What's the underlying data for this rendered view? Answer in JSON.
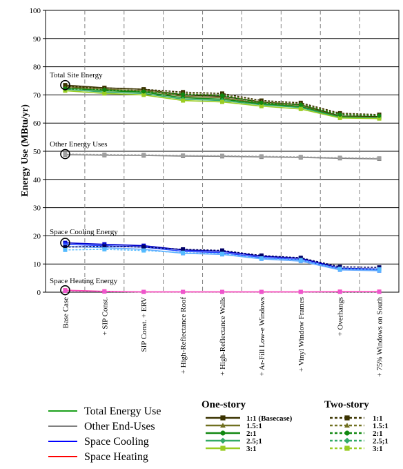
{
  "chart_data": {
    "type": "line",
    "ylabel": "Energy Use (MBtu/yr)",
    "ylim": [
      0,
      100
    ],
    "yticks": [
      "0",
      "10",
      "20",
      "30",
      "40",
      "50",
      "60",
      "70",
      "80",
      "90",
      "100"
    ],
    "grid": "horizontal",
    "categories": [
      "Base Case",
      "+ SIP Const.",
      "SIP Const. + ERV",
      "+ High-Reflectance Roof",
      "+ High-Reflectance Walls",
      "+ Ar-Fill Low-e Windows",
      "+ Vinyl Window Frames",
      "+ Overhangs",
      "+ 75% Windows on South"
    ],
    "annotations": [
      "Total Site Energy",
      "Other Energy Uses",
      "Space Cooling Energy",
      "Space Heating Energy"
    ],
    "circled_points": [
      {
        "category": "Base Case",
        "value": 73.5
      },
      {
        "category": "Base Case",
        "value": 49
      },
      {
        "category": "Base Case",
        "value": 17.5
      },
      {
        "category": "Base Case",
        "value": 0.7
      }
    ],
    "end_uses": [
      {
        "name": "Total Energy Use",
        "color": "#1aa01a"
      },
      {
        "name": "Other End-Uses",
        "color": "#808080"
      },
      {
        "name": "Space Cooling",
        "color": "#0000ff"
      },
      {
        "name": "Space Heating",
        "color": "#ff0000"
      }
    ],
    "aspect_ratios": {
      "one_story_label": "One-story",
      "two_story_label": "Two-story",
      "one_story": [
        {
          "name": "1:1 (Basecase)",
          "color": "#3a3300",
          "marker": "square"
        },
        {
          "name": "1.5:1",
          "color": "#707020",
          "marker": "triangle"
        },
        {
          "name": "2:1",
          "color": "#118811",
          "marker": "circle"
        },
        {
          "name": "2.5;1",
          "color": "#33aa66",
          "marker": "diamond"
        },
        {
          "name": "3:1",
          "color": "#99cc22",
          "marker": "square"
        }
      ],
      "two_story": [
        {
          "name": "1:1",
          "color": "#3a3300",
          "marker": "square"
        },
        {
          "name": "1.5:1",
          "color": "#707020",
          "marker": "triangle"
        },
        {
          "name": "2:1",
          "color": "#118811",
          "marker": "circle"
        },
        {
          "name": "2.5;1",
          "color": "#33aa66",
          "marker": "diamond"
        },
        {
          "name": "3:1",
          "color": "#99cc22",
          "marker": "square"
        }
      ]
    },
    "series": [
      {
        "group": "Total Energy Use",
        "story": "One-story",
        "name": "1:1 (Basecase)",
        "values": [
          73.5,
          72.5,
          72,
          70,
          69.5,
          67.5,
          66.5,
          62.5,
          62.3
        ],
        "color": "#3a3300",
        "marker": "square",
        "dashed": false
      },
      {
        "group": "Total Energy Use",
        "story": "One-story",
        "name": "1.5:1",
        "values": [
          73,
          72,
          71.5,
          69.5,
          69,
          67,
          66,
          62.3,
          62
        ],
        "color": "#707020",
        "marker": "triangle",
        "dashed": false
      },
      {
        "group": "Total Energy Use",
        "story": "One-story",
        "name": "2:1",
        "values": [
          72.5,
          71.5,
          71,
          69,
          68.5,
          66.8,
          65.8,
          62.2,
          61.9
        ],
        "color": "#118811",
        "marker": "circle",
        "dashed": false
      },
      {
        "group": "Total Energy Use",
        "story": "One-story",
        "name": "2.5;1",
        "values": [
          72,
          71,
          70.5,
          68.5,
          68,
          66.5,
          65.5,
          62,
          61.8
        ],
        "color": "#33aa66",
        "marker": "diamond",
        "dashed": false
      },
      {
        "group": "Total Energy Use",
        "story": "One-story",
        "name": "3:1",
        "values": [
          71.5,
          70.5,
          70,
          68,
          67.5,
          66,
          65,
          61.8,
          61.6
        ],
        "color": "#99cc22",
        "marker": "square",
        "dashed": false
      },
      {
        "group": "Total Energy Use",
        "story": "Two-story",
        "name": "1:1",
        "values": [
          73,
          72.5,
          72,
          71,
          70.5,
          68,
          67.2,
          63.5,
          63
        ],
        "color": "#3a3300",
        "marker": "square",
        "dashed": true
      },
      {
        "group": "Total Energy Use",
        "story": "Two-story",
        "name": "1.5:1",
        "values": [
          72.5,
          72,
          71.5,
          70.5,
          70,
          67.5,
          66.8,
          63.2,
          62.8
        ],
        "color": "#707020",
        "marker": "triangle",
        "dashed": true
      },
      {
        "group": "Total Energy Use",
        "story": "Two-story",
        "name": "2:1",
        "values": [
          72.2,
          71.8,
          71.2,
          70.2,
          69.8,
          67.2,
          66.5,
          63,
          62.6
        ],
        "color": "#118811",
        "marker": "circle",
        "dashed": true
      },
      {
        "group": "Other End-Uses",
        "story": "One-story",
        "name": "1:1 (Basecase)",
        "values": [
          48.8,
          48.6,
          48.5,
          48.3,
          48.2,
          48,
          47.8,
          47.5,
          47.3
        ],
        "color": "#808080",
        "marker": "square",
        "dashed": false
      },
      {
        "group": "Other End-Uses",
        "story": "Two-story",
        "name": "1:1",
        "values": [
          49,
          48.8,
          48.7,
          48.5,
          48.4,
          48.2,
          48,
          47.7,
          47.5
        ],
        "color": "#a0a0a0",
        "marker": "square",
        "dashed": true
      },
      {
        "group": "Space Cooling",
        "story": "One-story",
        "name": "1:1 (Basecase)",
        "values": [
          17.5,
          17,
          16.5,
          15,
          14.5,
          12.8,
          12,
          8.5,
          8.2
        ],
        "color": "#0000cc",
        "marker": "square",
        "dashed": false
      },
      {
        "group": "Space Cooling",
        "story": "One-story",
        "name": "2:1",
        "values": [
          17,
          16.5,
          16,
          14.5,
          14,
          12.3,
          11.5,
          8,
          7.8
        ],
        "color": "#2244ff",
        "marker": "circle",
        "dashed": false
      },
      {
        "group": "Space Cooling",
        "story": "One-story",
        "name": "3:1",
        "values": [
          16.2,
          15.8,
          15.2,
          13.8,
          13.4,
          11.8,
          11,
          7.9,
          7.6
        ],
        "color": "#66aaff",
        "marker": "square",
        "dashed": false
      },
      {
        "group": "Space Cooling",
        "story": "Two-story",
        "name": "1:1",
        "values": [
          16,
          16.3,
          16,
          15.2,
          14.8,
          13,
          12.2,
          9,
          8.8
        ],
        "color": "#000066",
        "marker": "square",
        "dashed": true
      },
      {
        "group": "Space Cooling",
        "story": "Two-story",
        "name": "3:1",
        "values": [
          15,
          15.2,
          14.8,
          14,
          13.6,
          12,
          11.4,
          8.3,
          8.1
        ],
        "color": "#55bbff",
        "marker": "square",
        "dashed": true
      },
      {
        "group": "Space Heating",
        "story": "One-story",
        "name": "1:1 (Basecase)",
        "values": [
          0.7,
          0.3,
          0.1,
          0.1,
          0.1,
          0.1,
          0.1,
          0.2,
          0.2
        ],
        "color": "#ff44aa",
        "marker": "square",
        "dashed": false
      },
      {
        "group": "Space Heating",
        "story": "Two-story",
        "name": "1:1",
        "values": [
          0.5,
          0.2,
          0.1,
          0.1,
          0.1,
          0.1,
          0.1,
          0.1,
          0.1
        ],
        "color": "#ee55cc",
        "marker": "square",
        "dashed": true
      }
    ]
  }
}
